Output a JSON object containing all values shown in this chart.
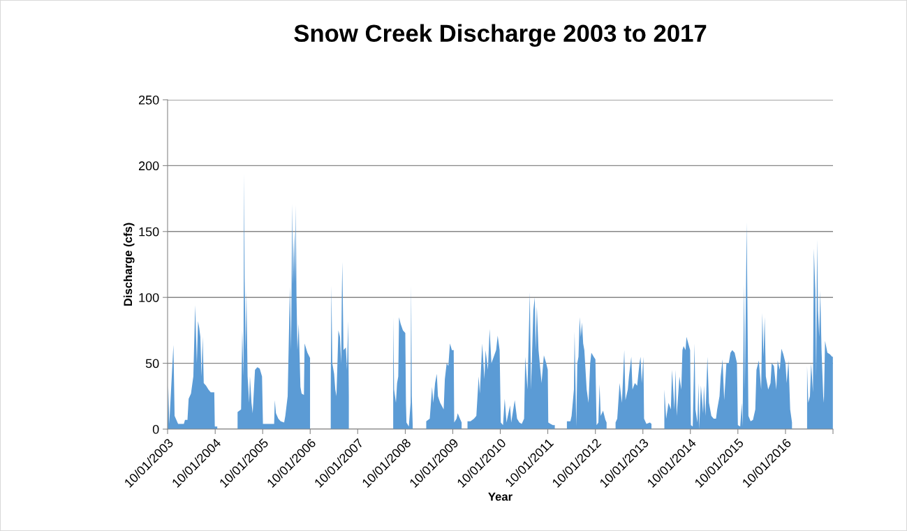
{
  "chart_data": {
    "type": "area",
    "title": "Snow Creek Discharge 2003 to 2017",
    "xlabel": "Year",
    "ylabel": "Discharge (cfs)",
    "xlim": [
      "2003-10-01",
      "2017-10-01"
    ],
    "ylim": [
      0,
      250
    ],
    "yticks": [
      0,
      50,
      100,
      150,
      200,
      250
    ],
    "xticks": [
      {
        "value": "2003-10-01",
        "label": "10/01/2003"
      },
      {
        "value": "2004-10-01",
        "label": "10/01/2004"
      },
      {
        "value": "2005-10-01",
        "label": "10/01/2005"
      },
      {
        "value": "2006-10-01",
        "label": "10/01/2006"
      },
      {
        "value": "2007-10-01",
        "label": "10/01/2007"
      },
      {
        "value": "2008-10-01",
        "label": "10/01/2008"
      },
      {
        "value": "2009-10-01",
        "label": "10/01/2009"
      },
      {
        "value": "2010-10-01",
        "label": "10/01/2010"
      },
      {
        "value": "2011-10-01",
        "label": "10/01/2011"
      },
      {
        "value": "2012-10-01",
        "label": "10/01/2012"
      },
      {
        "value": "2013-10-01",
        "label": "10/01/2013"
      },
      {
        "value": "2014-10-01",
        "label": "10/01/2014"
      },
      {
        "value": "2015-10-01",
        "label": "10/01/2015"
      },
      {
        "value": "2016-10-01",
        "label": "10/01/2016"
      },
      {
        "value": "2017-10-01",
        "label": null
      }
    ],
    "grid": "y",
    "legend": false,
    "series": [
      {
        "color": "#5b9bd5",
        "x": [
          "2003-10-01",
          "2003-10-06",
          "2003-10-14",
          "2003-11-15",
          "2003-11-24",
          "2003-12-21",
          "2004-02-03",
          "2004-02-12",
          "2004-03-02",
          "2004-03-11",
          "2004-03-29",
          "2004-04-16",
          "2004-04-30",
          "2004-05-13",
          "2004-05-22",
          "2004-05-31",
          "2004-06-09",
          "2004-06-18",
          "2004-06-27",
          "2004-07-05",
          "2004-07-23",
          "2004-08-10",
          "2004-08-28",
          "2004-09-24",
          "2004-09-28",
          "2004-10-17",
          "2004-12-15",
          "2005-03-22",
          "2005-04-18",
          "2005-04-27",
          "2005-05-06",
          "2005-05-11",
          "2005-05-15",
          "2005-05-23",
          "2005-05-29",
          "2005-06-07",
          "2005-06-19",
          "2005-06-25",
          "2005-07-07",
          "2005-07-16",
          "2005-08-03",
          "2005-08-21",
          "2005-09-08",
          "2005-09-26",
          "2005-10-03",
          "2005-10-31",
          "2005-12-06",
          "2005-12-28",
          "2006-01-02",
          "2006-01-11",
          "2006-01-29",
          "2006-02-16",
          "2006-03-15",
          "2006-03-24",
          "2006-04-11",
          "2006-04-28",
          "2006-05-07",
          "2006-05-16",
          "2006-05-22",
          "2006-05-31",
          "2006-06-07",
          "2006-06-12",
          "2006-06-18",
          "2006-06-25",
          "2006-07-05",
          "2006-07-18",
          "2006-07-27",
          "2006-08-14",
          "2006-08-19",
          "2006-09-10",
          "2006-09-30",
          "2006-12-01",
          "2007-03-08",
          "2007-03-13",
          "2007-03-20",
          "2007-04-03",
          "2007-04-12",
          "2007-04-21",
          "2007-05-06",
          "2007-05-18",
          "2007-05-27",
          "2007-06-01",
          "2007-06-05",
          "2007-06-14",
          "2007-07-02",
          "2007-07-11",
          "2007-07-20",
          "2007-07-25",
          "2007-12-01",
          "2008-06-30",
          "2008-07-07",
          "2008-07-21",
          "2008-07-30",
          "2008-08-08",
          "2008-08-14",
          "2008-08-26",
          "2008-09-13",
          "2008-10-01",
          "2008-10-06",
          "2008-10-10",
          "2008-10-28",
          "2008-11-11",
          "2008-11-15",
          "2008-11-20",
          "2008-11-27",
          "2009-01-15",
          "2009-03-11",
          "2009-04-07",
          "2009-04-16",
          "2009-04-25",
          "2009-05-04",
          "2009-05-18",
          "2009-05-31",
          "2009-06-09",
          "2009-06-26",
          "2009-07-23",
          "2009-08-01",
          "2009-08-15",
          "2009-08-28",
          "2009-09-09",
          "2009-09-24",
          "2009-10-08",
          "2009-10-12",
          "2009-10-30",
          "2009-11-08",
          "2009-11-25",
          "2009-12-08",
          "2009-12-18",
          "2010-01-22",
          "2010-02-14",
          "2010-03-13",
          "2010-03-31",
          "2010-04-18",
          "2010-04-27",
          "2010-05-15",
          "2010-06-01",
          "2010-06-10",
          "2010-06-28",
          "2010-07-11",
          "2010-07-25",
          "2010-08-12",
          "2010-08-30",
          "2010-09-11",
          "2010-09-26",
          "2010-10-05",
          "2010-10-22",
          "2010-11-04",
          "2010-11-18",
          "2010-12-15",
          "2010-12-24",
          "2011-01-20",
          "2011-02-07",
          "2011-02-25",
          "2011-03-15",
          "2011-04-02",
          "2011-04-11",
          "2011-04-28",
          "2011-05-16",
          "2011-05-25",
          "2011-06-12",
          "2011-06-23",
          "2011-06-30",
          "2011-07-09",
          "2011-07-22",
          "2011-08-05",
          "2011-08-14",
          "2011-09-01",
          "2011-09-19",
          "2011-10-01",
          "2011-10-05",
          "2011-10-22",
          "2011-11-09",
          "2011-11-24",
          "2012-01-15",
          "2012-02-25",
          "2012-03-23",
          "2012-04-01",
          "2012-04-19",
          "2012-04-24",
          "2012-05-07",
          "2012-05-15",
          "2012-05-24",
          "2012-06-02",
          "2012-06-11",
          "2012-06-20",
          "2012-06-29",
          "2012-07-08",
          "2012-07-26",
          "2012-08-09",
          "2012-08-22",
          "2012-08-31",
          "2012-09-18",
          "2012-10-01",
          "2012-10-10",
          "2012-10-24",
          "2012-11-02",
          "2012-11-11",
          "2012-11-29",
          "2012-12-17",
          "2012-12-26",
          "2013-02-10",
          "2013-03-05",
          "2013-03-18",
          "2013-04-05",
          "2013-04-23",
          "2013-05-11",
          "2013-05-20",
          "2013-06-07",
          "2013-06-16",
          "2013-07-04",
          "2013-07-13",
          "2013-07-31",
          "2013-08-18",
          "2013-09-05",
          "2013-09-13",
          "2013-09-22",
          "2013-10-05",
          "2013-10-10",
          "2013-10-28",
          "2013-11-24",
          "2013-12-06",
          "2014-01-10",
          "2014-03-15",
          "2014-03-29",
          "2014-04-16",
          "2014-05-04",
          "2014-05-13",
          "2014-05-22",
          "2014-05-31",
          "2014-06-09",
          "2014-06-18",
          "2014-07-09",
          "2014-07-23",
          "2014-08-01",
          "2014-08-10",
          "2014-08-25",
          "2014-09-01",
          "2014-09-15",
          "2014-09-29",
          "2014-10-05",
          "2014-10-19",
          "2014-11-02",
          "2014-11-09",
          "2014-11-24",
          "2014-12-03",
          "2014-12-08",
          "2014-12-21",
          "2015-01-07",
          "2015-01-13",
          "2015-01-25",
          "2015-02-09",
          "2015-02-21",
          "2015-03-11",
          "2015-03-29",
          "2015-04-16",
          "2015-04-25",
          "2015-05-13",
          "2015-05-22",
          "2015-06-05",
          "2015-06-18",
          "2015-07-05",
          "2015-07-23",
          "2015-08-05",
          "2015-08-19",
          "2015-09-06",
          "2015-09-24",
          "2015-10-01",
          "2015-10-19",
          "2015-10-31",
          "2015-11-06",
          "2015-11-18",
          "2015-11-24",
          "2015-12-08",
          "2015-12-13",
          "2015-12-21",
          "2016-01-07",
          "2016-01-25",
          "2016-02-12",
          "2016-02-21",
          "2016-03-10",
          "2016-03-28",
          "2016-04-06",
          "2016-04-15",
          "2016-04-24",
          "2016-05-03",
          "2016-05-21",
          "2016-06-08",
          "2016-06-17",
          "2016-07-04",
          "2016-07-22",
          "2016-08-02",
          "2016-08-18",
          "2016-08-31",
          "2016-09-14",
          "2016-10-01",
          "2016-10-10",
          "2016-10-24",
          "2016-11-06",
          "2016-11-20",
          "2017-01-01",
          "2017-03-16",
          "2017-03-25",
          "2017-04-07",
          "2017-04-16",
          "2017-04-30",
          "2017-05-07",
          "2017-05-18",
          "2017-05-25",
          "2017-06-01",
          "2017-06-08",
          "2017-06-17",
          "2017-06-25",
          "2017-07-05",
          "2017-07-18",
          "2017-07-23",
          "2017-08-01",
          "2017-08-19",
          "2017-09-06",
          "2017-09-24",
          "2017-09-30"
        ],
        "values": [
          4,
          33,
          4,
          64,
          10,
          4,
          4,
          7,
          7,
          23,
          27,
          40,
          94,
          50,
          82,
          77,
          70,
          40,
          70,
          35,
          33,
          30,
          28,
          28,
          2,
          2,
          null,
          13,
          15,
          75,
          40,
          194,
          115,
          60,
          105,
          40,
          20,
          40,
          20,
          12,
          45,
          47,
          46,
          40,
          4,
          4,
          4,
          4,
          22,
          12,
          8,
          6,
          5,
          10,
          25,
          108,
          60,
          171,
          110,
          150,
          112,
          170,
          100,
          60,
          80,
          32,
          27,
          26,
          65,
          58,
          54,
          null,
          30,
          109,
          50,
          42,
          30,
          25,
          75,
          70,
          50,
          100,
          127,
          60,
          62,
          45,
          82,
          25,
          null,
          85,
          30,
          20,
          35,
          40,
          85,
          80,
          75,
          73,
          20,
          5,
          2,
          20,
          109,
          25,
          3,
          null,
          6,
          8,
          20,
          32,
          20,
          35,
          42,
          25,
          20,
          15,
          38,
          50,
          48,
          65,
          60,
          60,
          5,
          8,
          12,
          8,
          5,
          null,
          6,
          6,
          8,
          10,
          40,
          27,
          65,
          38,
          60,
          45,
          76,
          50,
          55,
          60,
          71,
          60,
          5,
          3,
          23,
          5,
          18,
          5,
          22,
          8,
          5,
          4,
          8,
          55,
          30,
          104,
          30,
          90,
          100,
          60,
          93,
          60,
          45,
          35,
          56,
          50,
          45,
          5,
          4,
          3,
          3,
          null,
          6,
          6,
          10,
          30,
          74,
          2,
          50,
          55,
          85,
          70,
          81,
          65,
          60,
          30,
          20,
          50,
          58,
          55,
          53,
          3,
          5,
          34,
          10,
          14,
          7,
          5,
          null,
          5,
          8,
          35,
          20,
          60,
          22,
          30,
          40,
          55,
          30,
          35,
          33,
          50,
          55,
          35,
          55,
          8,
          4,
          5,
          4,
          null,
          30,
          8,
          20,
          15,
          45,
          30,
          15,
          45,
          10,
          40,
          30,
          60,
          63,
          60,
          70,
          65,
          60,
          3,
          2,
          65,
          15,
          5,
          35,
          0,
          33,
          12,
          33,
          10,
          55,
          20,
          10,
          8,
          8,
          15,
          25,
          40,
          53,
          22,
          50,
          50,
          58,
          60,
          58,
          50,
          3,
          2,
          20,
          2,
          110,
          30,
          157,
          98,
          10,
          6,
          7,
          15,
          45,
          52,
          30,
          88,
          55,
          85,
          40,
          30,
          35,
          50,
          48,
          30,
          52,
          45,
          61,
          57,
          50,
          35,
          52,
          15,
          5,
          null,
          48,
          20,
          25,
          50,
          28,
          137,
          105,
          40,
          144,
          90,
          70,
          105,
          60,
          25,
          20,
          67,
          58,
          57,
          55,
          55
        ]
      }
    ]
  }
}
